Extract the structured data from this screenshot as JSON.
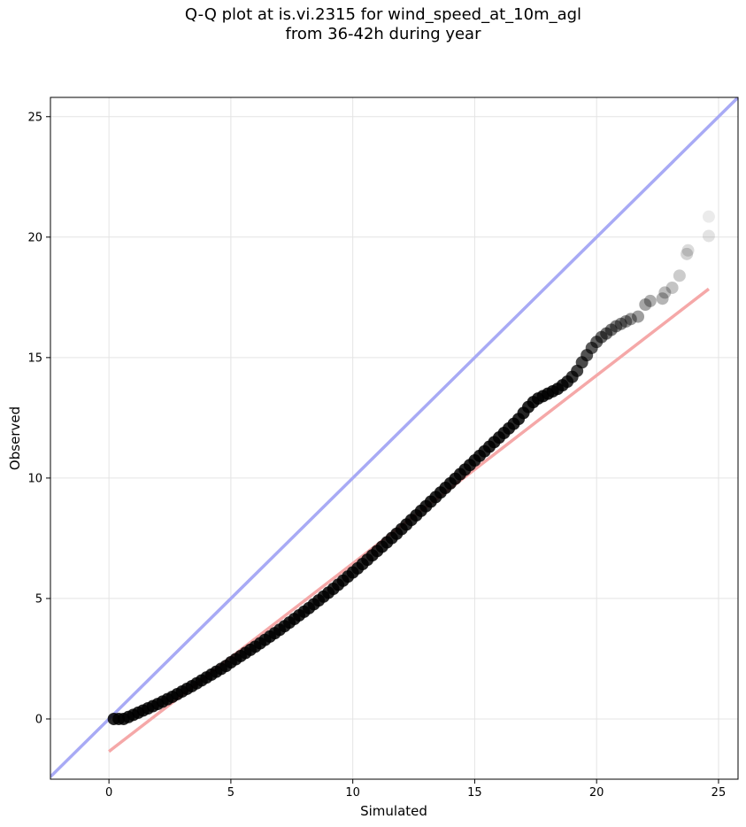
{
  "chart_data": {
    "type": "scatter",
    "title_line1": "Q-Q plot at is.vi.2315 for wind_speed_at_10m_agl",
    "title_line2": "from 36-42h during year",
    "xlabel": "Simulated",
    "ylabel": "Observed",
    "xlim": [
      -2.4,
      25.8
    ],
    "ylim": [
      -2.5,
      25.8
    ],
    "xticks": [
      0,
      5,
      10,
      15,
      20,
      25
    ],
    "yticks": [
      0,
      5,
      10,
      15,
      20,
      25
    ],
    "grid": true,
    "identity_line": {
      "color": "#a8aaf5",
      "from": [
        -2.4,
        -2.4
      ],
      "to": [
        25.8,
        25.8
      ]
    },
    "fit_line": {
      "color": "#f5a8a8",
      "from": [
        0,
        -1.35
      ],
      "to": [
        24.6,
        17.85
      ]
    },
    "points": [
      [
        0.2,
        0.0
      ],
      [
        0.4,
        0.0
      ],
      [
        0.6,
        0.0
      ],
      [
        0.8,
        0.08
      ],
      [
        1.0,
        0.17
      ],
      [
        1.2,
        0.26
      ],
      [
        1.4,
        0.35
      ],
      [
        1.6,
        0.44
      ],
      [
        1.8,
        0.53
      ],
      [
        2.0,
        0.62
      ],
      [
        2.2,
        0.72
      ],
      [
        2.4,
        0.82
      ],
      [
        2.6,
        0.92
      ],
      [
        2.8,
        1.03
      ],
      [
        3.0,
        1.14
      ],
      [
        3.2,
        1.25
      ],
      [
        3.4,
        1.36
      ],
      [
        3.6,
        1.48
      ],
      [
        3.8,
        1.6
      ],
      [
        4.0,
        1.72
      ],
      [
        4.2,
        1.84
      ],
      [
        4.4,
        1.96
      ],
      [
        4.6,
        2.08
      ],
      [
        4.8,
        2.2
      ],
      [
        5.0,
        2.35
      ],
      [
        5.2,
        2.48
      ],
      [
        5.4,
        2.61
      ],
      [
        5.6,
        2.74
      ],
      [
        5.8,
        2.87
      ],
      [
        6.0,
        3.0
      ],
      [
        6.2,
        3.14
      ],
      [
        6.4,
        3.28
      ],
      [
        6.6,
        3.42
      ],
      [
        6.8,
        3.56
      ],
      [
        7.0,
        3.7
      ],
      [
        7.2,
        3.85
      ],
      [
        7.4,
        4.0
      ],
      [
        7.6,
        4.15
      ],
      [
        7.8,
        4.3
      ],
      [
        8.0,
        4.45
      ],
      [
        8.2,
        4.6
      ],
      [
        8.4,
        4.76
      ],
      [
        8.6,
        4.92
      ],
      [
        8.8,
        5.08
      ],
      [
        9.0,
        5.24
      ],
      [
        9.2,
        5.4
      ],
      [
        9.4,
        5.57
      ],
      [
        9.6,
        5.74
      ],
      [
        9.8,
        5.91
      ],
      [
        10.0,
        6.08
      ],
      [
        10.2,
        6.25
      ],
      [
        10.4,
        6.43
      ],
      [
        10.6,
        6.61
      ],
      [
        10.8,
        6.79
      ],
      [
        11.0,
        6.97
      ],
      [
        11.2,
        7.15
      ],
      [
        11.4,
        7.33
      ],
      [
        11.6,
        7.51
      ],
      [
        11.8,
        7.69
      ],
      [
        12.0,
        7.88
      ],
      [
        12.2,
        8.07
      ],
      [
        12.4,
        8.26
      ],
      [
        12.6,
        8.45
      ],
      [
        12.8,
        8.64
      ],
      [
        13.0,
        8.83
      ],
      [
        13.2,
        9.02
      ],
      [
        13.4,
        9.21
      ],
      [
        13.6,
        9.4
      ],
      [
        13.8,
        9.59
      ],
      [
        14.0,
        9.78
      ],
      [
        14.2,
        9.97
      ],
      [
        14.4,
        10.16
      ],
      [
        14.6,
        10.35
      ],
      [
        14.8,
        10.54
      ],
      [
        15.0,
        10.73
      ],
      [
        15.2,
        10.92
      ],
      [
        15.4,
        11.11
      ],
      [
        15.6,
        11.3
      ],
      [
        15.8,
        11.49
      ],
      [
        16.0,
        11.68
      ],
      [
        16.2,
        11.87
      ],
      [
        16.4,
        12.06
      ],
      [
        16.6,
        12.25
      ],
      [
        16.8,
        12.45
      ],
      [
        17.0,
        12.7
      ],
      [
        17.2,
        12.95
      ],
      [
        17.4,
        13.15
      ],
      [
        17.6,
        13.3
      ],
      [
        17.8,
        13.4
      ],
      [
        18.0,
        13.5
      ],
      [
        18.2,
        13.6
      ],
      [
        18.4,
        13.7
      ],
      [
        18.6,
        13.85
      ],
      [
        18.8,
        14.0
      ],
      [
        19.0,
        14.2
      ],
      [
        19.2,
        14.45
      ],
      [
        19.4,
        14.8
      ],
      [
        19.6,
        15.1
      ],
      [
        19.8,
        15.4
      ],
      [
        20.0,
        15.65
      ],
      [
        20.2,
        15.85
      ],
      [
        20.4,
        16.0
      ],
      [
        20.6,
        16.15
      ],
      [
        20.8,
        16.3
      ],
      [
        21.0,
        16.4
      ],
      [
        21.2,
        16.5
      ],
      [
        21.4,
        16.6
      ],
      [
        21.7,
        16.7
      ],
      [
        22.0,
        17.2
      ],
      [
        22.2,
        17.35
      ],
      [
        22.7,
        17.45
      ],
      [
        22.8,
        17.7
      ],
      [
        23.1,
        17.9
      ],
      [
        23.4,
        18.4
      ],
      [
        23.7,
        19.3
      ],
      [
        23.75,
        19.45
      ],
      [
        24.6,
        20.05
      ],
      [
        24.6,
        20.85
      ]
    ]
  }
}
